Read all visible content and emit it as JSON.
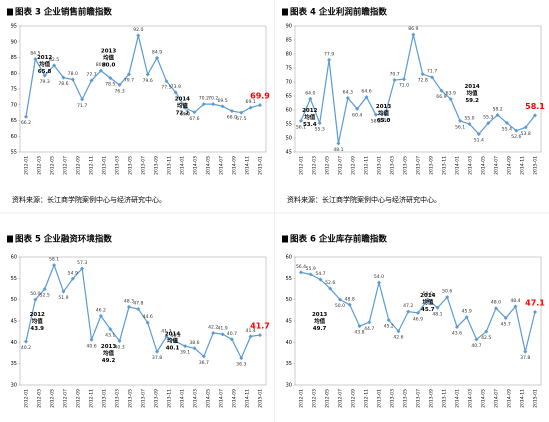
{
  "chart_data": [
    {
      "type": "line",
      "title": "图表 3  企业销售前瞻指数",
      "color": "#5b9bd5",
      "last_color": "#ff0000",
      "ylim": [
        55,
        95
      ],
      "yticks": [
        55,
        60,
        65,
        70,
        75,
        80,
        85,
        90,
        95
      ],
      "values": [
        66.2,
        84.5,
        79.3,
        82.5,
        78.6,
        78.0,
        71.7,
        77.7,
        80.8,
        78.5,
        76.3,
        79.7,
        92.0,
        79.6,
        84.9,
        77.5,
        73.9,
        69.0,
        67.6,
        70.2,
        70.2,
        69.5,
        68.0,
        67.5,
        69.1,
        69.9
      ],
      "value_labels": [
        "66.2",
        "84.5",
        "79.3",
        "82.5",
        "78.6",
        "78.0",
        "71.7",
        "77.7",
        "80.8",
        "78.5",
        "76.3",
        "79.7",
        "92.0",
        "79.6",
        "84.9",
        "77.5",
        "73.9",
        "69.0",
        "67.6",
        "70.2",
        "70.2",
        "69.5",
        "68.0",
        "67.5",
        "69.1",
        "69.9"
      ],
      "xtick_labels": [
        "2012-01",
        "2012-03",
        "2012-05",
        "2012-07",
        "2012-09",
        "2012-11",
        "2013-01",
        "2013-03",
        "2013-05",
        "2013-07",
        "2013-09",
        "2013-11",
        "2014-01",
        "2014-03",
        "2014-05",
        "2014-07",
        "2014-09",
        "2014-11",
        "2015-01"
      ],
      "annotations": [
        {
          "year": "2012",
          "label": "均值",
          "value": "65.8"
        },
        {
          "year": "2013",
          "label": "均值",
          "value": "80.0"
        },
        {
          "year": "2014",
          "label": "均值",
          "value": "72.2"
        }
      ],
      "source": "资料来源：长江商学院案例中心与经济研究中心。"
    },
    {
      "type": "line",
      "title": "图表 4  企业利润前瞻指数",
      "color": "#5b9bd5",
      "last_color": "#ff0000",
      "ylim": [
        45,
        90
      ],
      "yticks": [
        45,
        50,
        55,
        60,
        65,
        70,
        75,
        80,
        85,
        90
      ],
      "values": [
        56.1,
        64.0,
        55.3,
        77.9,
        48.1,
        64.3,
        60.4,
        64.6,
        58.3,
        58.5,
        70.7,
        71.0,
        86.9,
        72.8,
        71.7,
        66.9,
        63.9,
        56.1,
        55.0,
        51.4,
        55.3,
        58.2,
        55.4,
        52.6,
        53.8,
        58.1
      ],
      "value_labels": [
        "56.1",
        "64.0",
        "55.3",
        "77.9",
        "48.1",
        "64.3",
        "60.4",
        "64.6",
        "58.3",
        "58.5",
        "70.7",
        "71.0",
        "86.9",
        "72.8",
        "71.7",
        "66.9",
        "63.9",
        "56.1",
        "55.0",
        "51.4",
        "55.3",
        "58.2",
        "55.4",
        "52.6",
        "53.8",
        "58.1"
      ],
      "xtick_labels": [
        "2012-01",
        "2012-03",
        "2012-05",
        "2012-07",
        "2012-09",
        "2012-11",
        "2013-01",
        "2013-03",
        "2013-05",
        "2013-07",
        "2013-09",
        "2013-11",
        "2014-01",
        "2014-03",
        "2014-05",
        "2014-07",
        "2014-09",
        "2014-11",
        "2015-01"
      ],
      "annotations": [
        {
          "year": "2012",
          "label": "均值",
          "value": "53.4"
        },
        {
          "year": "2013",
          "label": "均值",
          "value": "65.0"
        },
        {
          "year": "2014",
          "label": "均值",
          "value": "59.2"
        }
      ],
      "source": "资料来源：长江商学院案例中心与经济研究中心。"
    },
    {
      "type": "line",
      "title": "图表 5  企业融资环境指数",
      "color": "#5b9bd5",
      "last_color": "#ff0000",
      "ylim": [
        30,
        60
      ],
      "yticks": [
        30,
        35,
        40,
        45,
        50,
        55,
        60
      ],
      "values": [
        40.2,
        50.0,
        52.5,
        58.1,
        51.9,
        54.9,
        57.3,
        40.6,
        46.2,
        43.1,
        40.3,
        48.3,
        47.8,
        44.6,
        37.8,
        41.3,
        40.2,
        39.1,
        38.6,
        36.7,
        42.2,
        41.9,
        40.7,
        36.3,
        41.4,
        41.7
      ],
      "value_labels": [
        "40.2",
        "50.0",
        "52.5",
        "58.1",
        "51.9",
        "54.9",
        "57.3",
        "40.6",
        "46.2",
        "43.1",
        "40.3",
        "48.3",
        "47.8",
        "44.6",
        "37.8",
        "41.3",
        "40.2",
        "39.1",
        "38.6",
        "36.7",
        "42.2",
        "41.9",
        "40.7",
        "36.3",
        "41.4",
        "41.7"
      ],
      "xtick_labels": [
        "2012-01",
        "2012-03",
        "2012-05",
        "2012-07",
        "2012-09",
        "2012-11",
        "2013-01",
        "2013-03",
        "2013-05",
        "2013-07",
        "2013-09",
        "2013-11",
        "2014-01",
        "2014-03",
        "2014-05",
        "2014-07",
        "2014-09",
        "2014-11",
        "2015-01"
      ],
      "annotations": [
        {
          "year": "2012",
          "label": "均值",
          "value": "43.9"
        },
        {
          "year": "2013",
          "label": "均值",
          "value": "49.2"
        },
        {
          "year": "2014",
          "label": "均值",
          "value": "40.1"
        }
      ]
    },
    {
      "type": "line",
      "title": "图表 6  企业库存前瞻指数",
      "color": "#5b9bd5",
      "last_color": "#ff0000",
      "ylim": [
        30,
        60
      ],
      "yticks": [
        30,
        35,
        40,
        45,
        50,
        55,
        60
      ],
      "values": [
        56.4,
        55.9,
        54.7,
        52.6,
        50.0,
        48.8,
        43.8,
        44.7,
        54.0,
        45.2,
        42.6,
        47.2,
        46.9,
        50.0,
        48.1,
        50.6,
        43.6,
        45.9,
        40.7,
        42.5,
        48.0,
        45.7,
        48.4,
        37.8,
        47.1
      ],
      "value_labels": [
        "56.4",
        "55.9",
        "54.7",
        "52.6",
        "50.0",
        "48.8",
        "43.8",
        "44.7",
        "54.0",
        "45.2",
        "42.6",
        "47.2",
        "46.9",
        "50.0",
        "48.1",
        "50.6",
        "43.6",
        "45.9",
        "40.7",
        "42.5",
        "48.0",
        "45.7",
        "48.4",
        "37.8",
        "47.1"
      ],
      "xtick_labels": [
        "2012-01",
        "2012-03",
        "2012-05",
        "2012-07",
        "2012-09",
        "2012-11",
        "2013-01",
        "2013-03",
        "2013-05",
        "2013-07",
        "2013-09",
        "2013-11",
        "2014-01",
        "2014-03",
        "2014-05",
        "2014-07",
        "2014-09",
        "2014-11",
        "2015-01"
      ],
      "annotations": [
        {
          "year": "2013",
          "label": "均值",
          "value": "49.7"
        },
        {
          "year": "2014",
          "label": "均值",
          "value": "45.7"
        }
      ]
    }
  ]
}
